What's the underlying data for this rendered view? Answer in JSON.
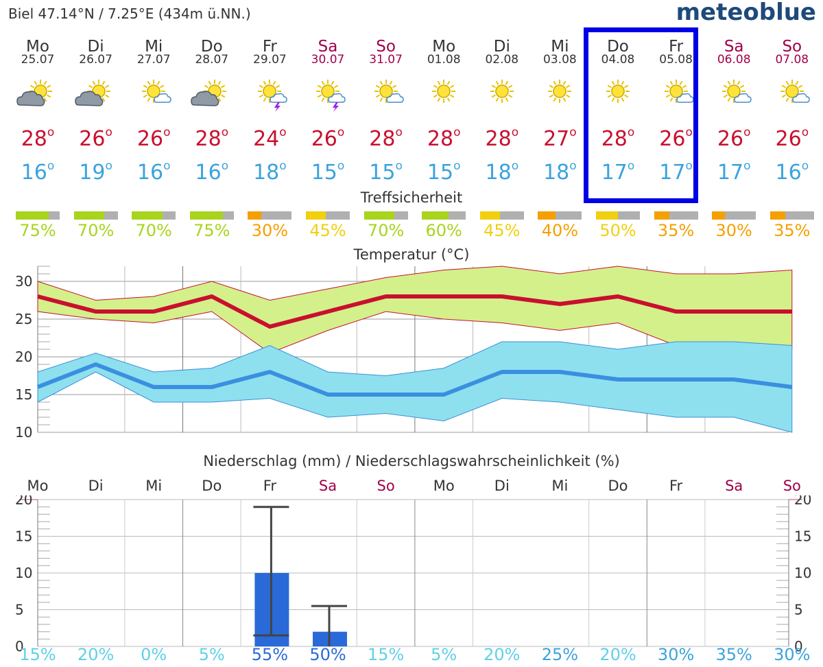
{
  "header": {
    "location": "Biel  47.14°N / 7.25°E (434m ü.NN.)",
    "logo": "meteoblue"
  },
  "days": [
    {
      "name": "Mo",
      "date": "25.07",
      "weekend": false,
      "icon": "sun-cloud-icon",
      "tmax": "28",
      "tmin": "16",
      "conf": "75%",
      "conf_pct": 75,
      "conf_color": "#a8d41e"
    },
    {
      "name": "Di",
      "date": "26.07",
      "weekend": false,
      "icon": "sun-cloud-icon",
      "tmax": "26",
      "tmin": "19",
      "conf": "70%",
      "conf_pct": 70,
      "conf_color": "#a8d41e"
    },
    {
      "name": "Mi",
      "date": "27.07",
      "weekend": false,
      "icon": "sun-small-cloud-icon",
      "tmax": "26",
      "tmin": "16",
      "conf": "70%",
      "conf_pct": 70,
      "conf_color": "#a8d41e"
    },
    {
      "name": "Do",
      "date": "28.07",
      "weekend": false,
      "icon": "sun-cloud-icon",
      "tmax": "28",
      "tmin": "16",
      "conf": "75%",
      "conf_pct": 75,
      "conf_color": "#a8d41e"
    },
    {
      "name": "Fr",
      "date": "29.07",
      "weekend": false,
      "icon": "sun-thunderstorm-icon",
      "tmax": "24",
      "tmin": "18",
      "conf": "30%",
      "conf_pct": 30,
      "conf_color": "#f5a000"
    },
    {
      "name": "Sa",
      "date": "30.07",
      "weekend": true,
      "icon": "sun-thunderstorm-icon",
      "tmax": "26",
      "tmin": "15",
      "conf": "45%",
      "conf_pct": 45,
      "conf_color": "#f0d010"
    },
    {
      "name": "So",
      "date": "31.07",
      "weekend": true,
      "icon": "sun-small-cloud-icon",
      "tmax": "28",
      "tmin": "15",
      "conf": "70%",
      "conf_pct": 70,
      "conf_color": "#a8d41e"
    },
    {
      "name": "Mo",
      "date": "01.08",
      "weekend": false,
      "icon": "sun-icon",
      "tmax": "28",
      "tmin": "15",
      "conf": "60%",
      "conf_pct": 60,
      "conf_color": "#a8d41e"
    },
    {
      "name": "Di",
      "date": "02.08",
      "weekend": false,
      "icon": "sun-icon",
      "tmax": "28",
      "tmin": "18",
      "conf": "45%",
      "conf_pct": 45,
      "conf_color": "#f0d010"
    },
    {
      "name": "Mi",
      "date": "03.08",
      "weekend": false,
      "icon": "sun-icon",
      "tmax": "27",
      "tmin": "18",
      "conf": "40%",
      "conf_pct": 40,
      "conf_color": "#f5a000"
    },
    {
      "name": "Do",
      "date": "04.08",
      "weekend": false,
      "icon": "sun-icon",
      "tmax": "28",
      "tmin": "17",
      "conf": "50%",
      "conf_pct": 50,
      "conf_color": "#f0d010"
    },
    {
      "name": "Fr",
      "date": "05.08",
      "weekend": false,
      "icon": "sun-small-cloud-icon",
      "tmax": "26",
      "tmin": "17",
      "conf": "35%",
      "conf_pct": 35,
      "conf_color": "#f5a000"
    },
    {
      "name": "Sa",
      "date": "06.08",
      "weekend": true,
      "icon": "sun-small-cloud-icon",
      "tmax": "26",
      "tmin": "17",
      "conf": "30%",
      "conf_pct": 30,
      "conf_color": "#f5a000"
    },
    {
      "name": "So",
      "date": "07.08",
      "weekend": true,
      "icon": "sun-small-cloud-icon",
      "tmax": "26",
      "tmin": "16",
      "conf": "35%",
      "conf_pct": 35,
      "conf_color": "#f5a000"
    }
  ],
  "confidence_title": "Treffsicherheit",
  "colors": {
    "tmax": "#c8102e",
    "tmin": "#3ba3dc",
    "tmax_band": "#d4f08a",
    "tmin_band": "#8fe0ee",
    "precip_bar": "#2a6ad8",
    "highlight": "#0000e6",
    "weekend": "#a0004a"
  },
  "chart_data": [
    {
      "type": "line",
      "title": "Temperatur (°C)",
      "ylim": [
        10,
        32
      ],
      "yticks": [
        "10",
        "15",
        "20",
        "25",
        "30"
      ],
      "grid": true,
      "series": [
        {
          "values": [
            28,
            26,
            26,
            28,
            24,
            26,
            28,
            28,
            28,
            27,
            28,
            26,
            26,
            26
          ]
        },
        {
          "values": [
            16,
            19,
            16,
            16,
            18,
            15,
            15,
            15,
            18,
            18,
            17,
            17,
            17,
            16
          ]
        }
      ],
      "max_band_upper": [
        30,
        27.5,
        28,
        30,
        27.5,
        29,
        30.5,
        31.5,
        32,
        31,
        32,
        31,
        31,
        31.5
      ],
      "max_band_lower": [
        26,
        25,
        24.5,
        26,
        20.5,
        23.5,
        26,
        25,
        24.5,
        23.5,
        24.5,
        21.5,
        21.5,
        21
      ],
      "min_band_upper": [
        18,
        20.5,
        18,
        18.5,
        21.5,
        18,
        17.5,
        18.5,
        22,
        22,
        21,
        22,
        22,
        21.5
      ],
      "min_band_lower": [
        14,
        18,
        14,
        14,
        14.5,
        12,
        12.5,
        11.5,
        14.5,
        14,
        13,
        12,
        12,
        10
      ]
    },
    {
      "type": "bar",
      "title": "Niederschlag (mm) / Niederschlagswahrscheinlichkeit (%)",
      "categories": [
        "Mo",
        "Di",
        "Mi",
        "Do",
        "Fr",
        "Sa",
        "So",
        "Mo",
        "Di",
        "Mi",
        "Do",
        "Fr",
        "Sa",
        "So"
      ],
      "ylim": [
        0,
        20
      ],
      "yticks": [
        "0",
        "5",
        "10",
        "15",
        "20"
      ],
      "values": [
        0,
        0,
        0,
        0,
        10,
        2,
        0,
        0,
        0,
        0,
        0,
        0,
        0,
        0
      ],
      "error_low": [
        null,
        null,
        null,
        null,
        1.5,
        0,
        null,
        null,
        null,
        null,
        null,
        null,
        null,
        null
      ],
      "error_high": [
        null,
        null,
        null,
        null,
        19,
        5.5,
        null,
        null,
        null,
        null,
        null,
        null,
        null,
        null
      ],
      "probability": [
        "15%",
        "20%",
        "0%",
        "5%",
        "55%",
        "50%",
        "15%",
        "5%",
        "20%",
        "25%",
        "20%",
        "30%",
        "35%",
        "30%"
      ],
      "probability_colors": [
        "#5fd0e8",
        "#5fd0e8",
        "#5fd0e8",
        "#5fd0e8",
        "#2a6ad8",
        "#2a6ad8",
        "#5fd0e8",
        "#5fd0e8",
        "#5fd0e8",
        "#3ba3dc",
        "#5fd0e8",
        "#3ba3dc",
        "#3ba3dc",
        "#3ba3dc"
      ]
    }
  ]
}
